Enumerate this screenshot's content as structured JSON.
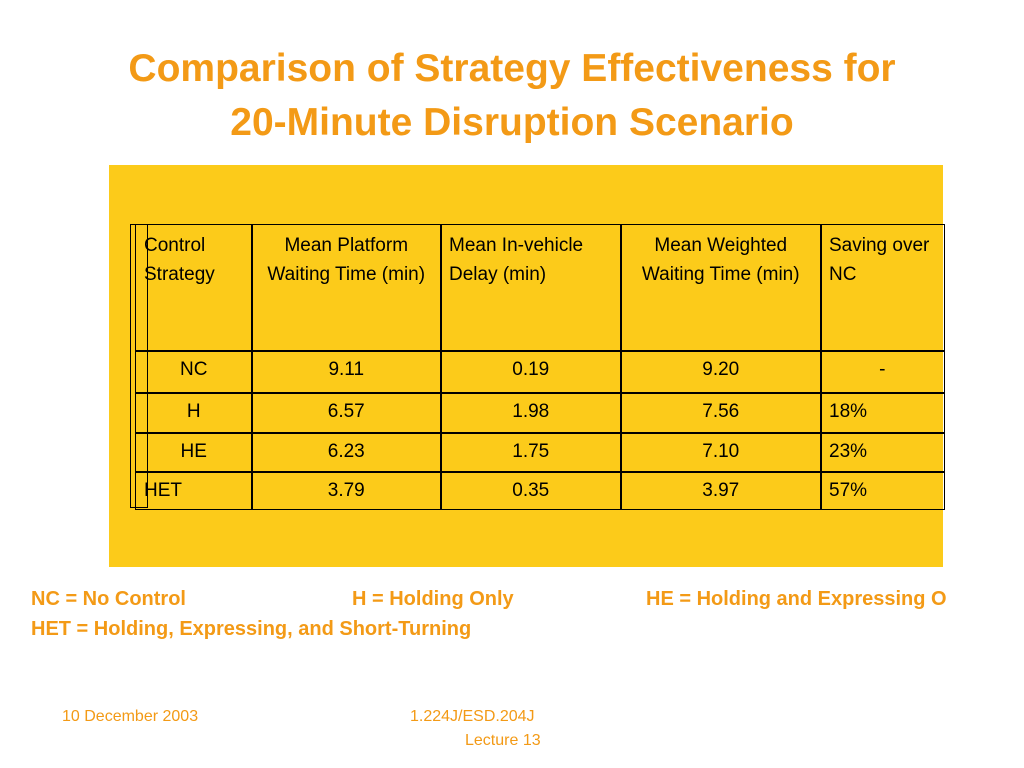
{
  "title": [
    "Comparison of Strategy Effectiveness for",
    "20-Minute Disruption Scenario"
  ],
  "table": {
    "header": [
      "Control Strategy",
      "Mean Platform Waiting Time (min)",
      "Mean In-vehicle Delay (min)",
      "Mean Weighted Waiting Time (min)",
      "Saving over NC"
    ],
    "rows": [
      [
        "NC",
        "9.11",
        "0.19",
        "9.20",
        "-"
      ],
      [
        "H",
        "6.57",
        "1.98",
        "7.56",
        "18%"
      ],
      [
        "HE",
        "6.23",
        "1.75",
        "7.10",
        "23%"
      ],
      [
        "HET",
        "3.79",
        "0.35",
        "3.97",
        "57%"
      ]
    ]
  },
  "legend": [
    [
      "NC = No Control",
      "H = Holding Only",
      "HE = Holding and Expressing O"
    ],
    [
      "HET = Holding, Expressing, and Short-Turning"
    ]
  ],
  "footer": {
    "date": "10 December 2003",
    "course": [
      "1.224J/ESD.204J",
      "Lecture 13"
    ]
  }
}
